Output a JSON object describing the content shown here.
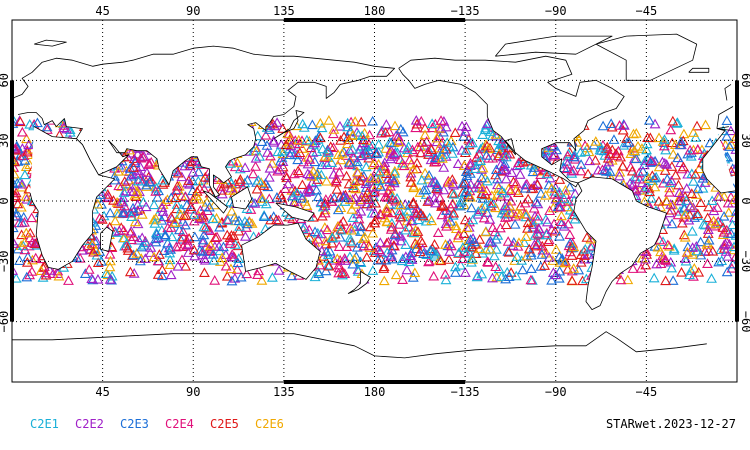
{
  "map": {
    "projection": "cylindrical",
    "center_lon": 180,
    "lon_range": [
      0,
      360
    ],
    "lat_range": [
      -90,
      90
    ],
    "grid": "dotted",
    "top_lon_labels": [
      "45",
      "90",
      "135",
      "180",
      "−135",
      "−90",
      "−45"
    ],
    "bottom_lon_labels": [
      "45",
      "90",
      "135",
      "180",
      "−135",
      "−90",
      "−45"
    ],
    "lat_labels": [
      "60",
      "30",
      "0",
      "−30",
      "−60"
    ],
    "land_fill": "#ffffff",
    "coast_color": "#000000",
    "marker_shape": "open-triangle",
    "observation_lat_band": [
      -40,
      40
    ]
  },
  "legend": [
    {
      "label": "C2E1",
      "color": "#1ab0d8"
    },
    {
      "label": "C2E2",
      "color": "#a020c8"
    },
    {
      "label": "C2E3",
      "color": "#1c6fd8"
    },
    {
      "label": "C2E4",
      "color": "#e0107a"
    },
    {
      "label": "C2E5",
      "color": "#e01818"
    },
    {
      "label": "C2E6",
      "color": "#f0a800"
    }
  ],
  "caption": "STARwet.2023-12-27"
}
